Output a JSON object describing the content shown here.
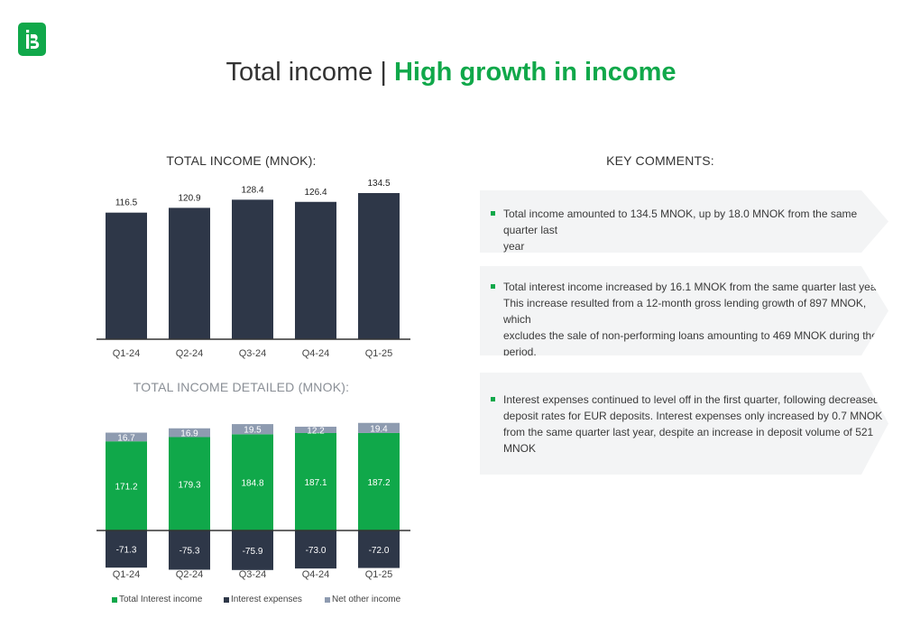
{
  "page": {
    "title_main": "Total income",
    "title_sep": "|",
    "title_highlight": "High growth in income"
  },
  "colors": {
    "brand_green": "#10a84a",
    "dark_bar": "#2e3748",
    "other_income": "#8e9bb0",
    "comment_bg": "#f3f4f5"
  },
  "chart_data": [
    {
      "type": "bar",
      "title": "TOTAL INCOME  (MNOK):",
      "categories": [
        "Q1-24",
        "Q2-24",
        "Q3-24",
        "Q4-24",
        "Q1-25"
      ],
      "values": [
        116.5,
        120.9,
        128.4,
        126.4,
        134.5
      ],
      "value_labels": [
        "116.5",
        "120.9",
        "128.4",
        "126.4",
        "134.5"
      ],
      "ylim": [
        0,
        137
      ],
      "grid": false
    },
    {
      "type": "bar",
      "stacked": true,
      "title": "TOTAL INCOME DETAILED (MNOK):",
      "categories": [
        "Q1-24",
        "Q2-24",
        "Q3-24",
        "Q4-24",
        "Q1-25"
      ],
      "series": [
        {
          "name": "Total Interest income",
          "values": [
            171.2,
            179.3,
            184.8,
            187.1,
            187.2
          ],
          "labels": [
            "171.2",
            "179.3",
            "184.8",
            "187.1",
            "187.2"
          ],
          "color": "#10a84a"
        },
        {
          "name": "Interest expenses",
          "values": [
            -71.3,
            -75.3,
            -75.9,
            -73.0,
            -72.0
          ],
          "labels": [
            "-71.3",
            "-75.3",
            "-75.9",
            "-73.0",
            "-72.0"
          ],
          "color": "#2e3748"
        },
        {
          "name": "Net other income",
          "values": [
            16.7,
            16.9,
            19.5,
            12.2,
            19.4
          ],
          "labels": [
            "16.7",
            "16.9",
            "19.5",
            "12.2",
            "19.4"
          ],
          "color": "#8e9bb0"
        }
      ],
      "legend": "bottom",
      "grid": false
    }
  ],
  "comments": {
    "title": "KEY COMMENTS:",
    "items": [
      {
        "lines": [
          "Total income amounted to 134.5 MNOK, up by 18.0 MNOK from the same quarter last",
          "year"
        ]
      },
      {
        "lines": [
          "Total interest income increased by 16.1 MNOK from the same quarter last year.",
          "This increase resulted from a 12-month gross lending growth of 897 MNOK, which",
          "excludes the sale of non-performing loans amounting to 469 MNOK during the",
          "period."
        ]
      },
      {
        "lines": [
          "Interest expenses continued to level off in the first quarter, following decreased",
          "deposit rates for EUR deposits. Interest expenses only increased by 0.7 MNOK",
          "from the same quarter last year, despite an increase in deposit volume of 521",
          "MNOK"
        ]
      }
    ]
  }
}
